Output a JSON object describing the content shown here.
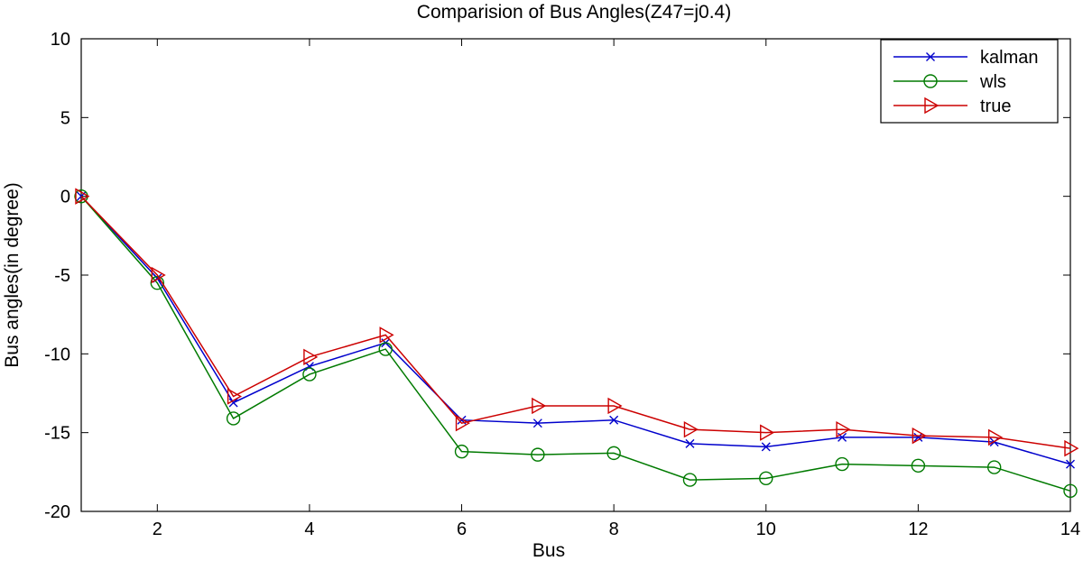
{
  "chart_data": {
    "type": "line",
    "title": "Comparision of Bus Angles(Z47=j0.4)",
    "xlabel": "Bus",
    "ylabel": "Bus angles(in degree)",
    "xlim": [
      1,
      14
    ],
    "ylim": [
      -20,
      10
    ],
    "xticks": [
      2,
      4,
      6,
      8,
      10,
      12,
      14
    ],
    "yticks": [
      10,
      5,
      0,
      -5,
      -10,
      -15,
      -20
    ],
    "grid": false,
    "legend_position": "top-right",
    "x": [
      1,
      2,
      3,
      4,
      5,
      6,
      7,
      8,
      9,
      10,
      11,
      12,
      13,
      14
    ],
    "series": [
      {
        "name": "kalman",
        "color": "#0000cc",
        "marker": "x",
        "values": [
          0,
          -5.2,
          -13.1,
          -10.8,
          -9.3,
          -14.2,
          -14.4,
          -14.2,
          -15.7,
          -15.9,
          -15.3,
          -15.3,
          -15.6,
          -17.0
        ]
      },
      {
        "name": "wls",
        "color": "#007a00",
        "marker": "circle",
        "values": [
          0,
          -5.5,
          -14.1,
          -11.3,
          -9.7,
          -16.2,
          -16.4,
          -16.3,
          -18.0,
          -17.9,
          -17.0,
          -17.1,
          -17.2,
          -18.7
        ]
      },
      {
        "name": "true",
        "color": "#cc0000",
        "marker": "triangle-right",
        "values": [
          0,
          -5.0,
          -12.7,
          -10.2,
          -8.8,
          -14.4,
          -13.3,
          -13.3,
          -14.8,
          -15.0,
          -14.8,
          -15.2,
          -15.3,
          -16.0
        ]
      }
    ]
  }
}
